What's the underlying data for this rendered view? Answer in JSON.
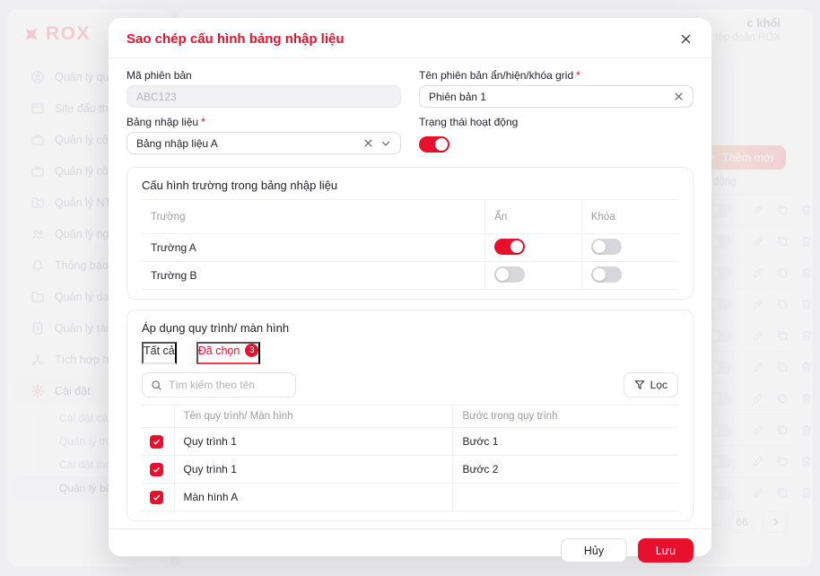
{
  "brand": {
    "logo_text": "ROX"
  },
  "sidebar": {
    "items": [
      {
        "label": "Quản lý quy trình",
        "icon": "process-icon"
      },
      {
        "label": "Site đấu thầu",
        "icon": "site-icon"
      },
      {
        "label": "Quản lý công việc",
        "icon": "briefcase-icon"
      },
      {
        "label": "Quản lý công việc",
        "icon": "briefcase-icon"
      },
      {
        "label": "Quản lý NT/NCC",
        "icon": "folder-tag-icon"
      },
      {
        "label": "Quản lý người dùng",
        "icon": "users-icon"
      },
      {
        "label": "Thông báo",
        "icon": "bell-icon"
      },
      {
        "label": "Quản lý danh mục",
        "icon": "folder-icon"
      },
      {
        "label": "Quản lý tài liệu",
        "icon": "document-icon"
      },
      {
        "label": "Tích hợp hệ thống",
        "icon": "integration-icon"
      },
      {
        "label": "Cài đặt",
        "icon": "gear-icon",
        "active": true
      }
    ],
    "sub_items": [
      {
        "label": "Cài đặt cá nhân"
      },
      {
        "label": "Quản lý thông báo h"
      },
      {
        "label": "Cài đặt thời gian làm"
      },
      {
        "label": "Quản lý bảng nhập l",
        "active": true
      }
    ]
  },
  "header_user": {
    "name_fragment": "c khối",
    "org_fragment": "phần tập đoàn ROX"
  },
  "background": {
    "add_button_label": "Thêm mới",
    "column_header_fragment": "động",
    "row_count": 10,
    "pagination": {
      "ellipsis": "...",
      "page": "66"
    }
  },
  "modal": {
    "title": "Sao chép cấu hình bảng nhập liệu",
    "fields": {
      "ma_phien_ban": {
        "label": "Mã phiên bản",
        "value": "ABC123",
        "disabled": true
      },
      "ten_phien_ban": {
        "label": "Tên phiên bản ẩn/hiện/khóa grid",
        "value": "Phiên bản 1",
        "required": true
      },
      "bang_nhap_lieu": {
        "label": "Bảng nhập liệu",
        "value": "Bảng nhập liệu A",
        "required": true
      },
      "trang_thai": {
        "label": "Trạng thái hoạt động",
        "on": true
      }
    },
    "field_config": {
      "title": "Cấu hình trường trong bảng nhập liệu",
      "columns": [
        "Trường",
        "Ẩn",
        "Khóa"
      ],
      "rows": [
        {
          "name": "Trường A",
          "an": true,
          "khoa": false
        },
        {
          "name": "Trường B",
          "an": false,
          "khoa": false
        }
      ]
    },
    "apply": {
      "title": "Áp dụng quy trình/ màn hình",
      "tabs": [
        {
          "label": "Tất cả"
        },
        {
          "label": "Đã chọn",
          "badge": "3",
          "active": true
        }
      ],
      "search_placeholder": "Tìm kiếm theo tên",
      "filter_label": "Lọc",
      "columns": [
        "Tên quy trình/ Màn hình",
        "Bước trong quy trình"
      ],
      "rows": [
        {
          "checked": true,
          "name": "Quy trình 1",
          "step": "Bước 1"
        },
        {
          "checked": true,
          "name": "Quy trình 1",
          "step": "Bước 2"
        },
        {
          "checked": true,
          "name": "Màn hình A",
          "step": ""
        }
      ]
    },
    "footer": {
      "cancel_label": "Hủy",
      "save_label": "Lưu"
    }
  },
  "colors": {
    "primary": "#e8112d"
  }
}
